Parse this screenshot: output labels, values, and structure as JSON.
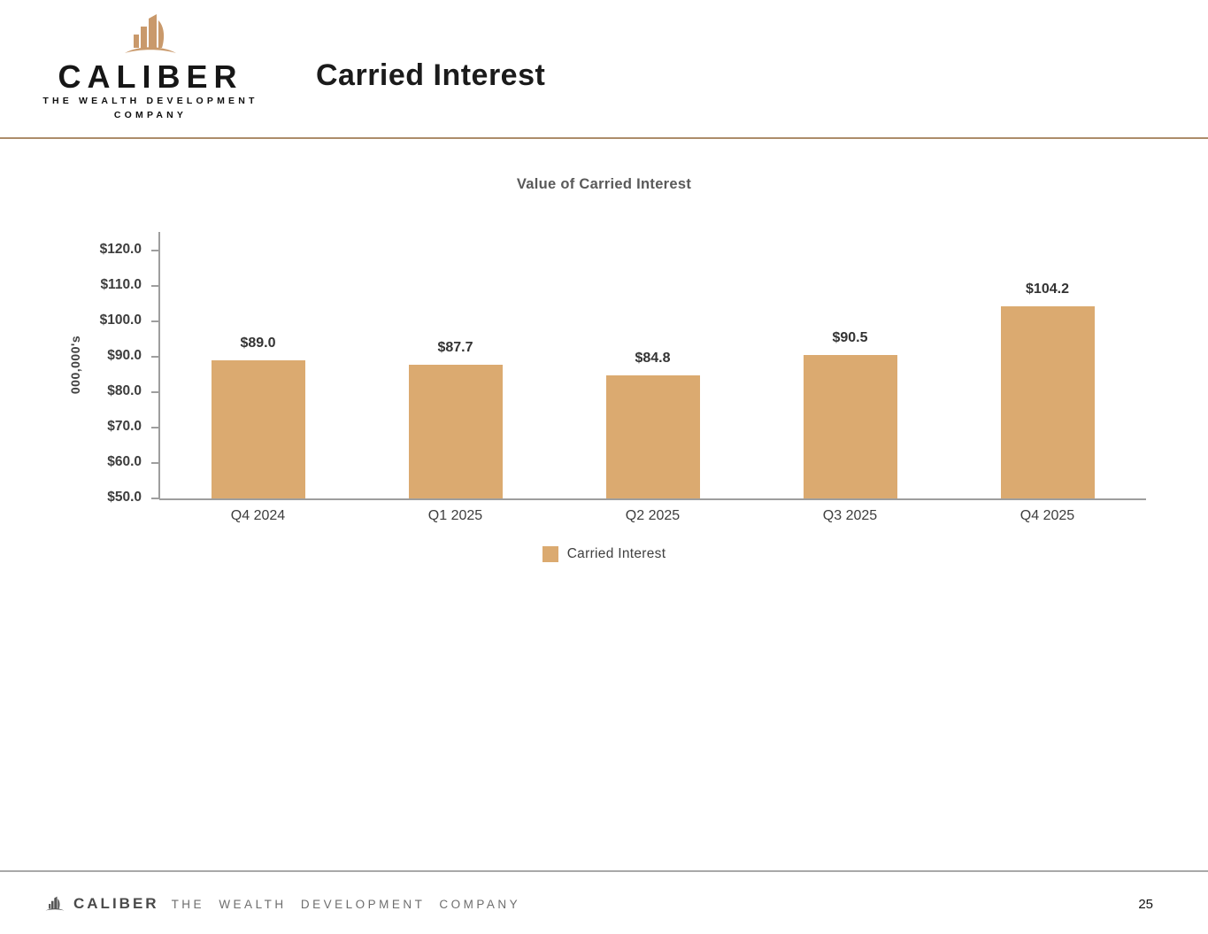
{
  "header": {
    "title": "Carried Interest",
    "logo": {
      "brand": "CALIBER",
      "tagline_line1": "THE WEALTH DEVELOPMENT",
      "tagline_line2": "COMPANY"
    }
  },
  "chart_data": {
    "type": "bar",
    "title": "Value of Carried Interest",
    "categories": [
      "Q4 2024",
      "Q1 2025",
      "Q2 2025",
      "Q3 2025",
      "Q4 2025"
    ],
    "values": [
      89.0,
      87.7,
      84.8,
      90.5,
      104.2
    ],
    "data_labels": [
      "$89.0",
      "$87.7",
      "$84.8",
      "$90.5",
      "$104.2"
    ],
    "xlabel": "",
    "ylabel": "000,000's",
    "y_ticks": [
      "$120.0",
      "$110.0",
      "$100.0",
      "$90.0",
      "$80.0",
      "$70.0",
      "$60.0",
      "$50.0"
    ],
    "ylim": [
      50,
      125.25
    ],
    "grid": false,
    "bar_color": "#DBAA70",
    "legend_position": "bottom",
    "legend": [
      {
        "label": "Carried Interest",
        "color": "#DBAA70"
      }
    ]
  },
  "footer": {
    "brand": "CALIBER",
    "tagline": "THE WEALTH DEVELOPMENT COMPANY",
    "page_number": "25"
  },
  "colors": {
    "header_rule": "#ac8c6a",
    "footer_rule": "#a9a9a9",
    "logo_gold": "#C9996B",
    "axis": "#9e9e9e"
  }
}
